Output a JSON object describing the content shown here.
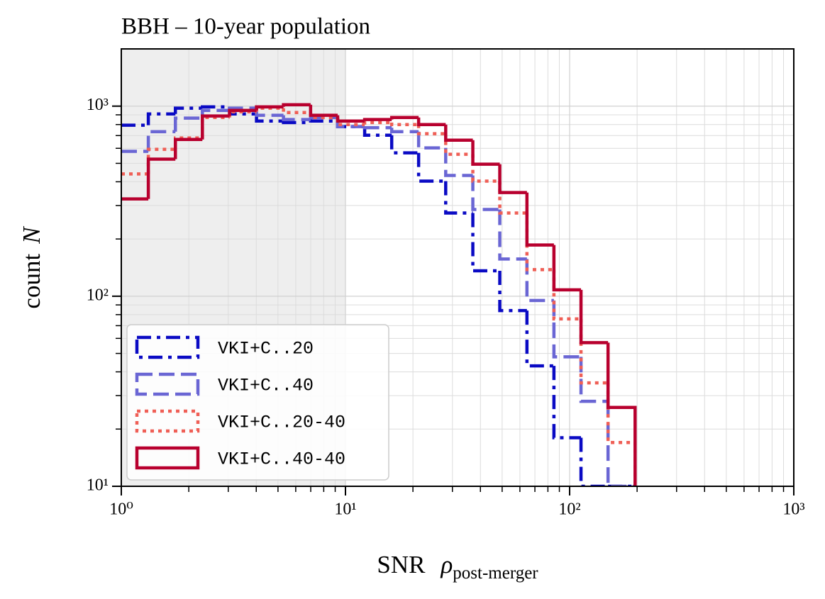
{
  "chart_data": {
    "type": "step_histogram",
    "title": "BBH – 10-year population",
    "x_label": {
      "text": "SNR",
      "symbol": "ρ",
      "subscript": "post-merger"
    },
    "y_label": {
      "text": "count",
      "symbol": "N"
    },
    "x_log": true,
    "y_log": true,
    "grid": true,
    "xlim": [
      1,
      1000
    ],
    "ylim": [
      10,
      2000
    ],
    "xticks": [
      {
        "value": 1,
        "label": "10⁰"
      },
      {
        "value": 10,
        "label": "10¹"
      },
      {
        "value": 100,
        "label": "10²"
      },
      {
        "value": 1000,
        "label": "10³"
      }
    ],
    "yticks": [
      {
        "value": 10,
        "label": "10¹"
      },
      {
        "value": 100,
        "label": "10²"
      },
      {
        "value": 1000,
        "label": "10³"
      }
    ],
    "x_minor_ticks": [
      2,
      3,
      4,
      5,
      6,
      7,
      8,
      9,
      20,
      30,
      40,
      50,
      60,
      70,
      80,
      90,
      200,
      300,
      400,
      500,
      600,
      700,
      800,
      900
    ],
    "y_minor_ticks": [
      20,
      30,
      40,
      50,
      60,
      70,
      80,
      90,
      200,
      300,
      400,
      500,
      600,
      700,
      800,
      900
    ],
    "shade": {
      "x": [
        1,
        10
      ],
      "color": "#eeeeee"
    },
    "legend": "lower left",
    "bins": [
      1,
      1.32,
      1.743,
      2.3,
      3.04,
      4.01,
      5.29,
      6.99,
      9.23,
      12.18,
      16.08,
      21.2,
      28.0,
      37.0,
      48.8,
      64.5,
      85.1,
      112.4,
      148.4,
      195.9
    ],
    "series": [
      {
        "name": "VKI+C..20",
        "color": "#0a0ac4",
        "linestyle": "dashdot",
        "values": [
          794,
          910,
          975,
          991,
          910,
          835,
          820,
          835,
          780,
          703,
          568,
          403,
          274,
          136,
          84,
          43,
          18,
          0,
          0
        ]
      },
      {
        "name": "VKI+C..40",
        "color": "#6a66d4",
        "linestyle": "dashed",
        "values": [
          578,
          734,
          865,
          950,
          975,
          895,
          850,
          870,
          780,
          770,
          734,
          603,
          432,
          286,
          157,
          95,
          48,
          28,
          10
        ]
      },
      {
        "name": "VKI+C..20-40",
        "color": "#ef5f56",
        "linestyle": "dotted",
        "values": [
          440,
          593,
          680,
          871,
          933,
          975,
          925,
          870,
          800,
          820,
          800,
          716,
          558,
          403,
          274,
          138,
          76,
          35,
          17
        ]
      },
      {
        "name": "VKI+C..40-40",
        "color": "#b8002e",
        "linestyle": "solid",
        "values": [
          325,
          526,
          668,
          887,
          950,
          991,
          1017,
          895,
          835,
          850,
          871,
          800,
          662,
          495,
          351,
          186,
          108,
          57,
          26
        ]
      }
    ]
  }
}
